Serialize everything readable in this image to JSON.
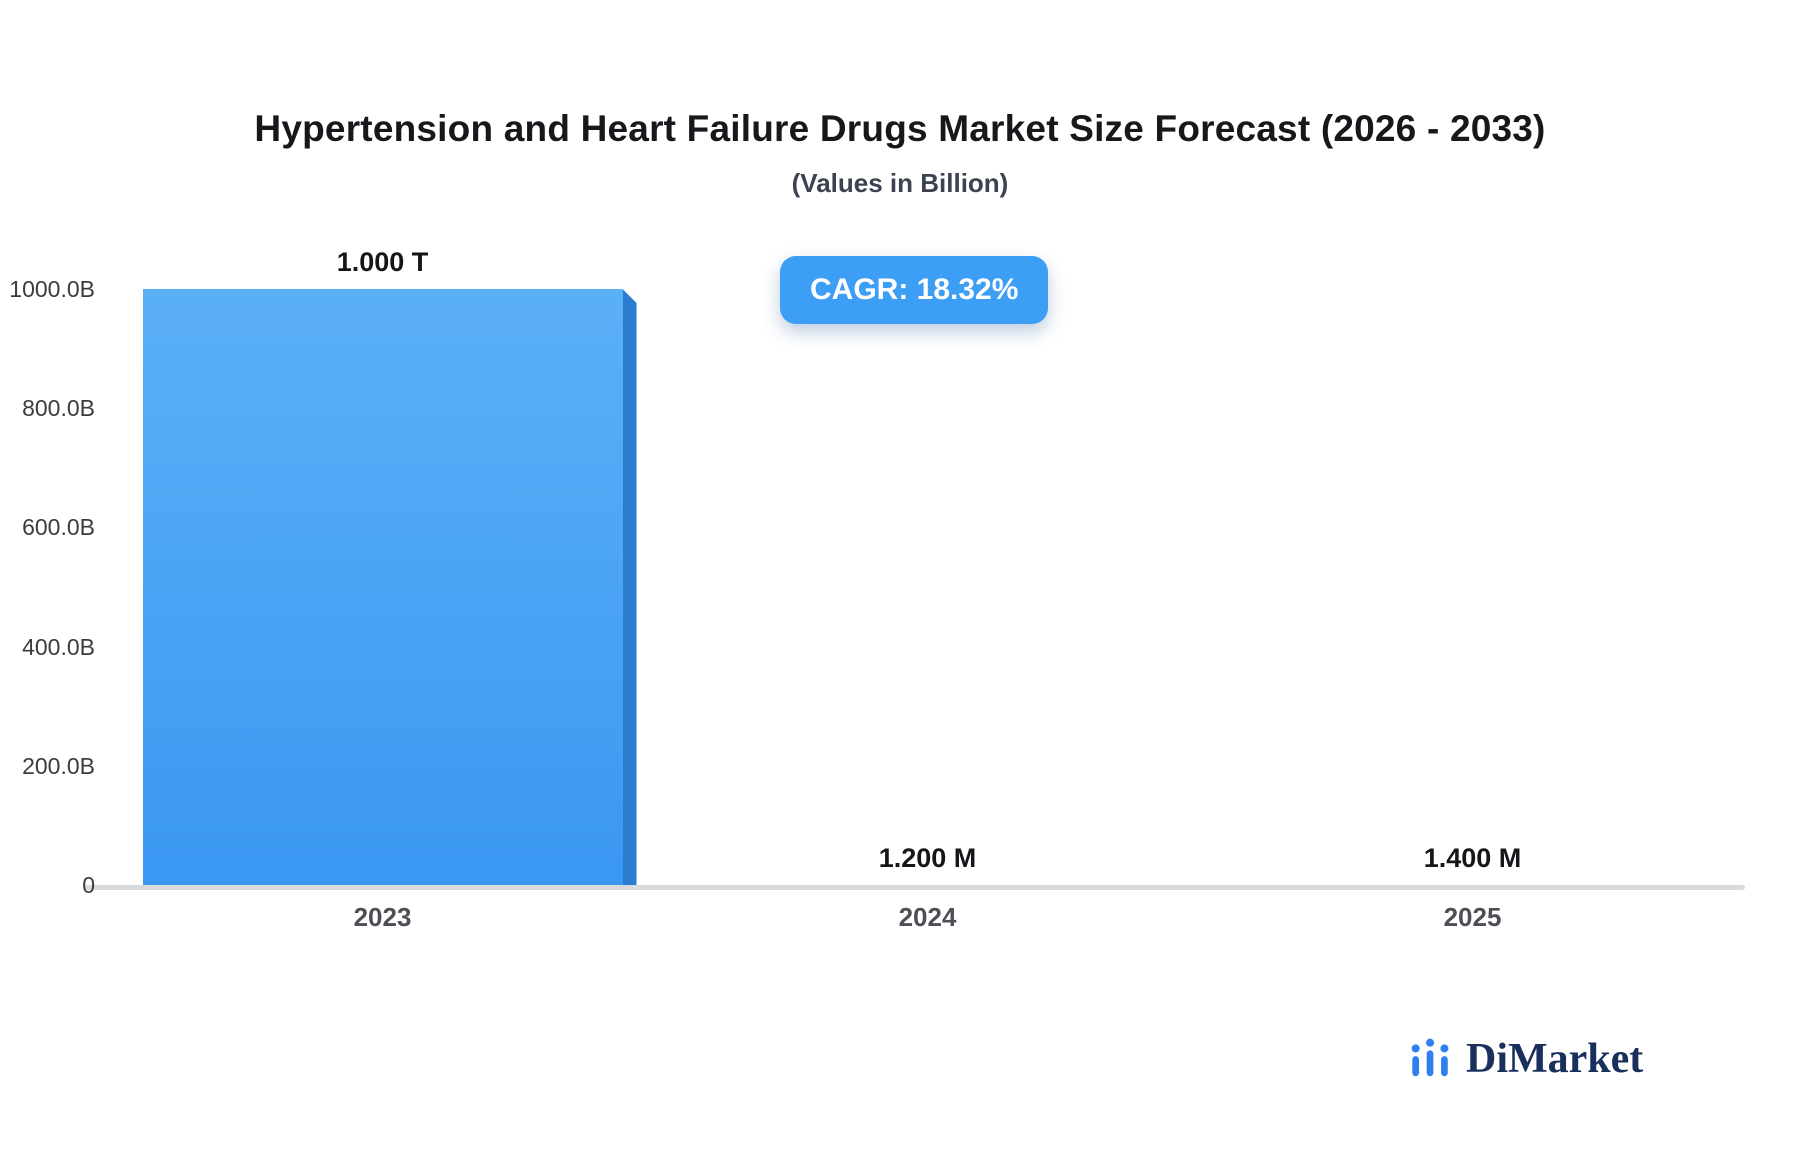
{
  "header": {
    "title": "Hypertension and Heart Failure Drugs Market Size Forecast (2026 - 2033)",
    "subtitle": "(Values in Billion)"
  },
  "badge": {
    "label": "CAGR: 18.32%",
    "color": "#3d9ef5"
  },
  "chart_data": {
    "type": "bar",
    "title": "Hypertension and Heart Failure Drugs Market Size Forecast (2026 - 2033)",
    "subtitle": "(Values in Billion)",
    "unit": "Billion",
    "categories": [
      "2023",
      "2024",
      "2025"
    ],
    "values": [
      1000,
      0.0012,
      0.0014
    ],
    "value_labels": [
      "1.000 T",
      "1.200 M",
      "1.400 M"
    ],
    "ylim": [
      0,
      1000
    ],
    "yticks": [
      0,
      200,
      400,
      600,
      800,
      1000
    ],
    "ytick_labels": [
      "0",
      "200.0B",
      "400.0B",
      "600.0B",
      "800.0B",
      "1000.0B"
    ],
    "grid": false,
    "legend": "none",
    "bar_color": "#3a97f2",
    "bar_color_light": "#5bb0f7",
    "bar_side_color": "#2a7cd0",
    "baseline_color": "#d9dadb"
  },
  "logo": {
    "text": "DiMarket",
    "icon": "bar-chart-icon",
    "text_color": "#19305c",
    "icon_color": "#2e7ff0"
  }
}
